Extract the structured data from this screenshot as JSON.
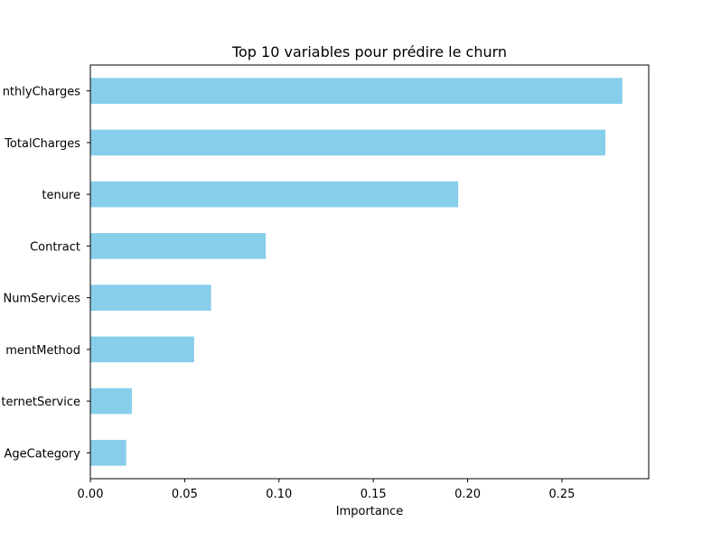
{
  "chart_data": {
    "type": "bar",
    "orientation": "horizontal",
    "title": "Top 10 variables pour prédire le churn",
    "xlabel": "Importance",
    "ylabel": "",
    "categories": [
      "AgeCategory",
      "InternetService",
      "PaymentMethod",
      "NumServices",
      "Contract",
      "tenure",
      "TotalCharges",
      "MonthlyCharges"
    ],
    "tick_labels_visible": [
      "AgeCategory",
      "ternetService",
      "mentMethod",
      "NumServices",
      "Contract",
      "tenure",
      "TotalCharges",
      "nthlyCharges"
    ],
    "values": [
      0.019,
      0.022,
      0.055,
      0.064,
      0.093,
      0.195,
      0.273,
      0.282
    ],
    "xlim": [
      0.0,
      0.296
    ],
    "xticks": [
      0.0,
      0.05,
      0.1,
      0.15,
      0.2,
      0.25
    ],
    "xtick_labels": [
      "0.00",
      "0.05",
      "0.10",
      "0.15",
      "0.20",
      "0.25"
    ],
    "bar_color": "#87CEEB",
    "grid": false,
    "legend": "none"
  }
}
